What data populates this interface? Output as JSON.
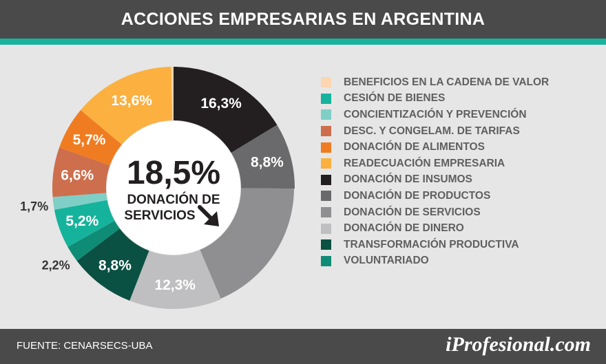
{
  "title": "ACCIONES EMPRESARIAS EN ARGENTINA",
  "footer": {
    "source": "FUENTE:  CENARSECS-UBA",
    "brand": "iProfesional.com"
  },
  "colors": {
    "header": "#4a4a4a",
    "accent": "#19b39d",
    "background": "#e6e6e6"
  },
  "chart_data": {
    "type": "pie",
    "subtype": "donut",
    "title": "ACCIONES EMPRESARIAS EN ARGENTINA",
    "unit": "%",
    "center": {
      "value": "18,5%",
      "line1": "DONACIÓN DE",
      "line2": "SERVICIOS",
      "icon": "arrow-down-right-icon"
    },
    "slices": [
      {
        "name": "DONACIÓN DE INSUMOS",
        "value": 16.3,
        "label": "16,3%",
        "color": "#231f20",
        "label_color": "#ffffff"
      },
      {
        "name": "DONACIÓN DE PRODUCTOS",
        "value": 8.8,
        "label": "8,8%",
        "color": "#6a6a6c",
        "label_color": "#ffffff"
      },
      {
        "name": "DONACIÓN DE SERVICIOS",
        "value": 18.5,
        "label": "",
        "color": "#8f8f91",
        "label_color": "#ffffff"
      },
      {
        "name": "DONACIÓN DE DINERO",
        "value": 12.3,
        "label": "12,3%",
        "color": "#bfbfc1",
        "label_color": "#ffffff"
      },
      {
        "name": "TRANSFORMACIÓN PRODUCTIVA",
        "value": 8.8,
        "label": "8,8%",
        "color": "#0b5143",
        "label_color": "#ffffff"
      },
      {
        "name": "VOLUNTARIADO",
        "value": 2.2,
        "label": "2,2%",
        "color": "#0f8c76",
        "label_color": "#333333",
        "label_outside": true
      },
      {
        "name": "CESIÓN DE BIENES",
        "value": 5.2,
        "label": "5,2%",
        "color": "#16b39c",
        "label_color": "#ffffff"
      },
      {
        "name": "CONCIENTIZACIÓN Y PREVENCIÓN",
        "value": 1.7,
        "label": "1,7%",
        "color": "#7fcfc6",
        "label_color": "#333333",
        "label_outside": true
      },
      {
        "name": "DESC. Y CONGELAM. DE TARIFAS",
        "value": 6.6,
        "label": "6,6%",
        "color": "#cd6e4d",
        "label_color": "#ffffff"
      },
      {
        "name": "DONACIÓN DE ALIMENTOS",
        "value": 5.7,
        "label": "5,7%",
        "color": "#f07c22",
        "label_color": "#ffffff"
      },
      {
        "name": "READECUACIÓN EMPRESARIA",
        "value": 13.6,
        "label": "13,6%",
        "color": "#fbb040",
        "label_color": "#ffffff"
      },
      {
        "name": "BENEFICIOS EN LA CADENA DE VALOR",
        "value": 0.3,
        "label": "",
        "color": "#fbd6b0",
        "label_color": "#ffffff"
      }
    ],
    "legend": [
      {
        "label": "BENEFICIOS EN LA CADENA DE VALOR",
        "color": "#fbd6b0"
      },
      {
        "label": "CESIÓN DE BIENES",
        "color": "#16b39c"
      },
      {
        "label": "CONCIENTIZACIÓN Y PREVENCIÓN",
        "color": "#7fcfc6"
      },
      {
        "label": "DESC. Y CONGELAM. DE TARIFAS",
        "color": "#cd6e4d"
      },
      {
        "label": "DONACIÓN DE ALIMENTOS",
        "color": "#f07c22"
      },
      {
        "label": "READECUACIÓN EMPRESARIA",
        "color": "#fbb040"
      },
      {
        "label": "DONACIÓN DE INSUMOS",
        "color": "#231f20"
      },
      {
        "label": "DONACIÓN DE PRODUCTOS",
        "color": "#6a6a6c"
      },
      {
        "label": "DONACIÓN DE SERVICIOS",
        "color": "#8f8f91"
      },
      {
        "label": "DONACIÓN DE DINERO",
        "color": "#bfbfc1"
      },
      {
        "label": "TRANSFORMACIÓN PRODUCTIVA",
        "color": "#0b5143"
      },
      {
        "label": "VOLUNTARIADO",
        "color": "#0f8c76"
      }
    ],
    "legend_position": "right"
  }
}
